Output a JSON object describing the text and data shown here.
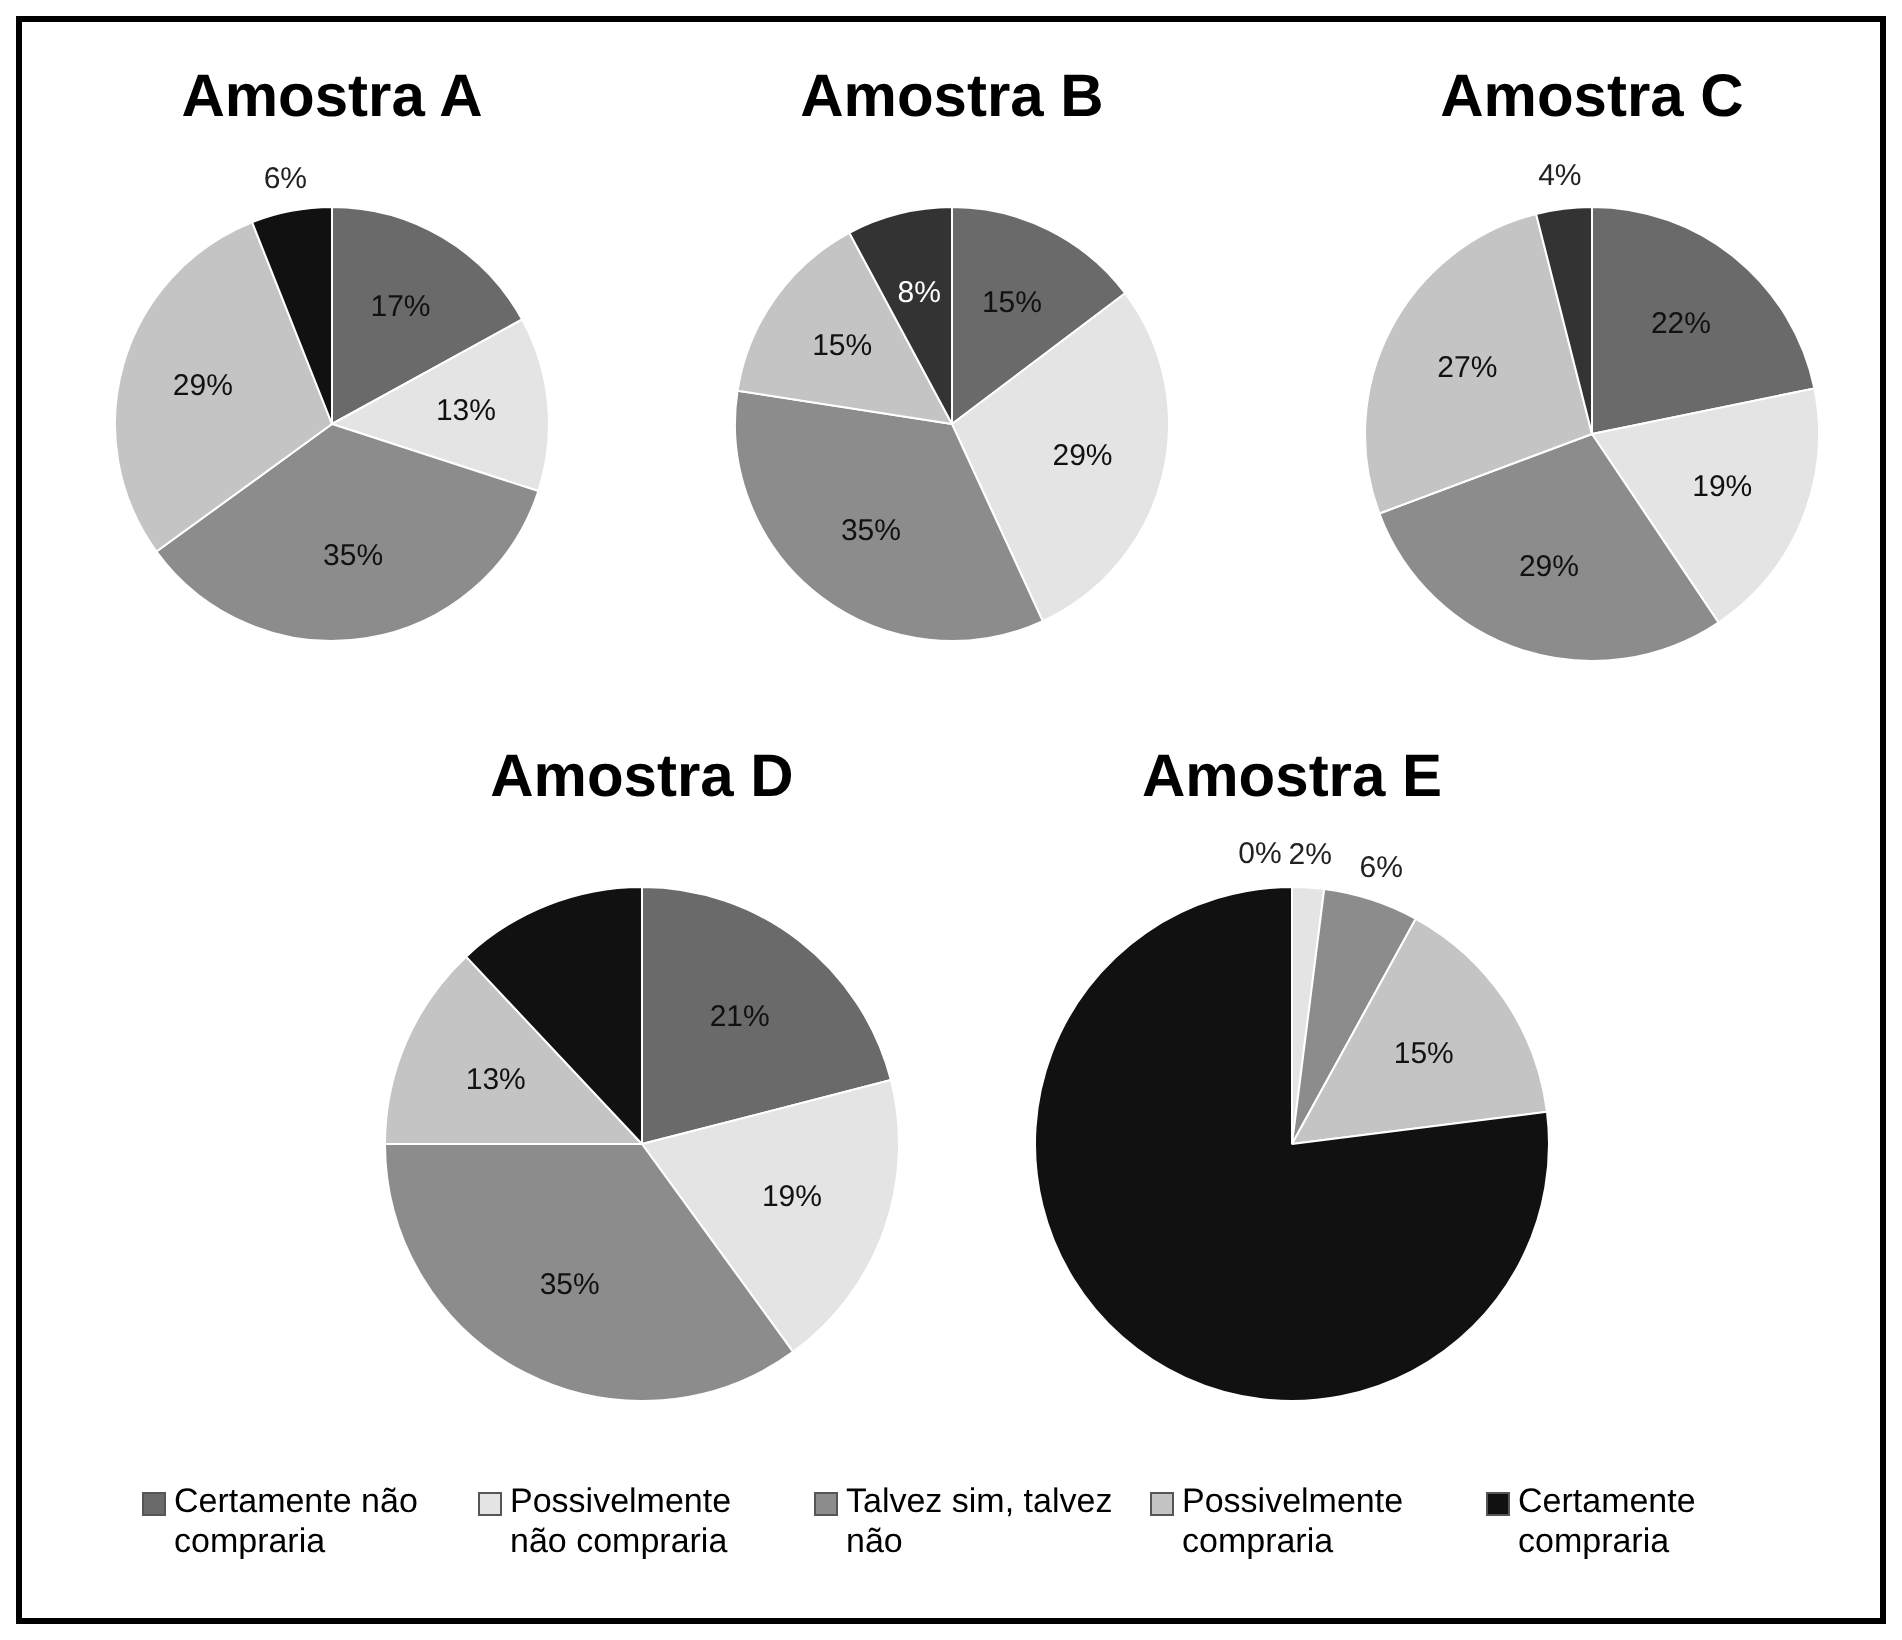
{
  "chart_data": [
    {
      "type": "pie",
      "title": "Amostra A",
      "categories": [
        "Certamente não compraria",
        "Possivelmente não compraria",
        "Talvez sim, talvez não",
        "Possivelmente compraria",
        "Certamente compraria"
      ],
      "values": [
        17,
        13,
        35,
        29,
        6
      ],
      "colors": [
        "#6a6a6a",
        "#e4e4e4",
        "#8c8c8c",
        "#c4c4c4",
        "#111111"
      ],
      "value_labels": [
        "17%",
        "13%",
        "35%",
        "29%",
        "6%"
      ],
      "legend": "bottom"
    },
    {
      "type": "pie",
      "title": "Amostra B",
      "categories": [
        null,
        null,
        null,
        null,
        null
      ],
      "values": [
        15,
        29,
        35,
        15,
        8
      ],
      "colors": [
        "#6a6a6a",
        "#e4e4e4",
        "#8c8c8c",
        "#c4c4c4",
        "#333333"
      ],
      "value_labels": [
        "15%",
        "29%",
        "35%",
        "15%",
        "8%"
      ]
    },
    {
      "type": "pie",
      "title": "Amostra C",
      "categories": [
        null,
        null,
        null,
        null,
        null
      ],
      "values": [
        22,
        19,
        29,
        27,
        4
      ],
      "colors": [
        "#6a6a6a",
        "#e4e4e4",
        "#8c8c8c",
        "#c4c4c4",
        "#333333"
      ],
      "value_labels": [
        "22%",
        "19%",
        "29%",
        "27%",
        "4%"
      ]
    },
    {
      "type": "pie",
      "title": "Amostra D",
      "categories": [
        null,
        null,
        null,
        null,
        null
      ],
      "values": [
        21,
        19,
        35,
        13,
        12
      ],
      "colors": [
        "#6a6a6a",
        "#e4e4e4",
        "#8c8c8c",
        "#c4c4c4",
        "#111111"
      ],
      "value_labels": [
        "21%",
        "19%",
        "35%",
        "13%",
        null
      ]
    },
    {
      "type": "pie",
      "title": "Amostra E",
      "categories": [
        null,
        null,
        null,
        null,
        null
      ],
      "values": [
        0,
        2,
        6,
        15,
        77
      ],
      "colors": [
        "#6a6a6a",
        "#e4e4e4",
        "#8c8c8c",
        "#c4c4c4",
        "#111111"
      ],
      "value_labels": [
        "0%",
        "2%",
        "6%",
        "15%",
        null
      ]
    }
  ]
}
